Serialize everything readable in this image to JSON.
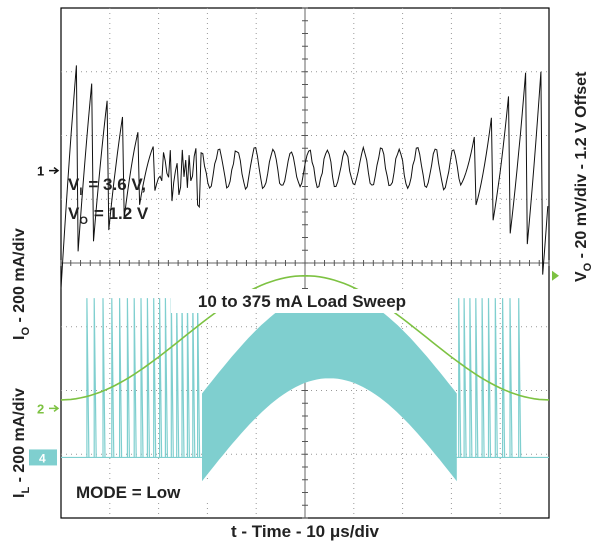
{
  "chart_data": {
    "type": "line",
    "title": "",
    "xlabel": "t - Time - 10 μs/div",
    "xlim": [
      0,
      100
    ],
    "ylim": [
      0,
      8
    ],
    "grid": true,
    "traces": [
      {
        "name": "VO",
        "axis_label": "VO - 20 mV/div - 1.2 V Offset",
        "axis_label_sub": "O",
        "axis_label_rest": " - 20 mV/div - 1.2 V Offset",
        "marker": "1",
        "color": "#111111",
        "ripple_light_load_div": 1.9,
        "ripple_heavy_load_div": 0.3
      },
      {
        "name": "IO",
        "axis_label": "IO - 200 mA/div",
        "axis_label_sub": "O",
        "axis_label_rest": " - 200 mA/div",
        "marker": "2",
        "color": "#7dc242",
        "x": [
          0,
          10,
          20,
          30,
          40,
          50,
          60,
          70,
          80,
          90,
          100
        ],
        "y": [
          10,
          44,
          124,
          235,
          330,
          375,
          330,
          235,
          124,
          44,
          10
        ],
        "units": "mA"
      },
      {
        "name": "IL",
        "axis_label": "IL - 200 mA/div",
        "axis_label_sub": "L",
        "axis_label_rest": " - 200 mA/div",
        "marker": "4",
        "color": "#7fcfcf",
        "mode_pfm_x": [
          [
            0,
            29
          ],
          [
            81,
            100
          ]
        ],
        "mode_pwm_x": [
          29,
          81
        ]
      }
    ],
    "annotations": {
      "vi": "= 3.6 V,",
      "vi_sub": "I",
      "vo": "= 1.2 V",
      "vo_sub": "O",
      "sweep": "10 to 375 mA Load Sweep",
      "mode": "MODE = Low"
    }
  }
}
